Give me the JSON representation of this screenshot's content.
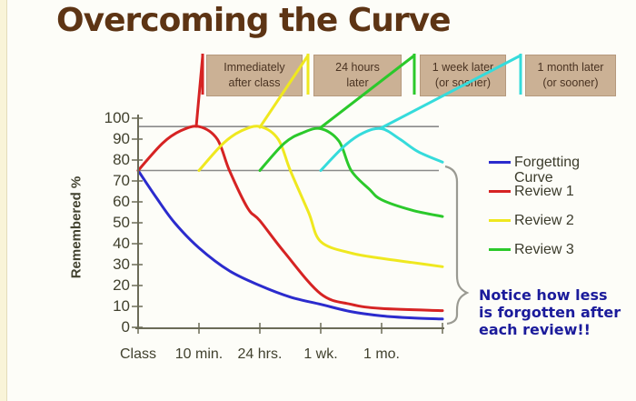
{
  "slide": {
    "title": "Overcoming the Curve",
    "title_color": "#5d3414",
    "background": "#fdfdf8",
    "edge_strip_color": "#f9f4d8"
  },
  "callouts": {
    "box_bg": "#cbb195",
    "box_text_color": "#4a3322",
    "boxes": [
      {
        "lines": [
          "Immediately",
          "after class"
        ],
        "series": "review1"
      },
      {
        "lines": [
          "24 hours",
          "later"
        ],
        "series": "review2"
      },
      {
        "lines": [
          "1 week later",
          "(or sooner)"
        ],
        "series": "review3"
      },
      {
        "lines": [
          "1 month later",
          "(or sooner)"
        ],
        "series": "review4"
      }
    ]
  },
  "chart_data": {
    "type": "line",
    "title": "",
    "xlabel": "",
    "ylabel": "Remembered %",
    "ylim": [
      0,
      100
    ],
    "yticks": [
      100,
      90,
      80,
      70,
      60,
      50,
      40,
      30,
      20,
      10,
      0
    ],
    "x_categories": [
      "Class",
      "10 min.",
      "24 hrs.",
      "1 wk.",
      "1 mo."
    ],
    "x_unit_note": "x in category units: 0=Class, 1=10 min., 2=24 hrs., 3=1 wk., 4=1 mo., 5=right edge",
    "grid": false,
    "legend_position": "right",
    "reference_lines_pct": [
      96,
      75
    ],
    "series": [
      {
        "id": "forgetting",
        "name": "Forgetting Curve",
        "color": "#2b2bcd",
        "x": [
          0,
          0.3,
          0.6,
          1,
          1.5,
          2,
          2.5,
          3,
          3.5,
          4,
          4.5,
          5
        ],
        "y": [
          75,
          62,
          50,
          38,
          27,
          20,
          14.5,
          11,
          7.5,
          5.5,
          4.5,
          4
        ]
      },
      {
        "id": "review1",
        "name": "Review 1",
        "color": "#d62323",
        "x": [
          0,
          0.4,
          0.7,
          1,
          1.3,
          1.5,
          1.8,
          2,
          2.4,
          3,
          3.5,
          4,
          5
        ],
        "y": [
          75,
          88,
          94,
          96,
          90,
          75,
          57,
          51,
          36,
          16,
          11,
          9,
          8
        ]
      },
      {
        "id": "review2",
        "name": "Review 2",
        "color": "#efe81f",
        "x": [
          1,
          1.4,
          1.7,
          2,
          2.3,
          2.5,
          2.8,
          3,
          3.5,
          4,
          4.5,
          5
        ],
        "y": [
          75,
          88,
          94,
          96,
          90,
          75,
          55,
          41,
          35.5,
          33,
          31,
          29
        ]
      },
      {
        "id": "review3",
        "name": "Review 3",
        "color": "#2bc92b",
        "x": [
          2,
          2.4,
          2.7,
          3,
          3.3,
          3.5,
          3.8,
          4,
          4.5,
          5
        ],
        "y": [
          75,
          88,
          93,
          95,
          89,
          75,
          66,
          61,
          56,
          53
        ]
      },
      {
        "id": "review4",
        "name": "",
        "color": "#35dbdb",
        "x": [
          3,
          3.4,
          3.7,
          4,
          4.3,
          4.6,
          5
        ],
        "y": [
          75,
          87,
          93,
          95,
          90,
          84,
          79
        ]
      }
    ]
  },
  "legend": {
    "text_color": "#3b3b2b",
    "items": [
      {
        "label": "Forgetting Curve",
        "series": "forgetting"
      },
      {
        "label": "Review 1",
        "series": "review1"
      },
      {
        "label": "Review 2",
        "series": "review2"
      },
      {
        "label": "Review 3",
        "series": "review3"
      }
    ]
  },
  "note": {
    "lines": [
      "Notice how less",
      "is forgotten after",
      "each review!!"
    ],
    "color": "#1b1b9b"
  },
  "axis": {
    "color": "#6b6b57",
    "tick_label_color": "#41412e",
    "reference_line_color": "#8a8a8a",
    "brace_color": "#9a9a92"
  }
}
